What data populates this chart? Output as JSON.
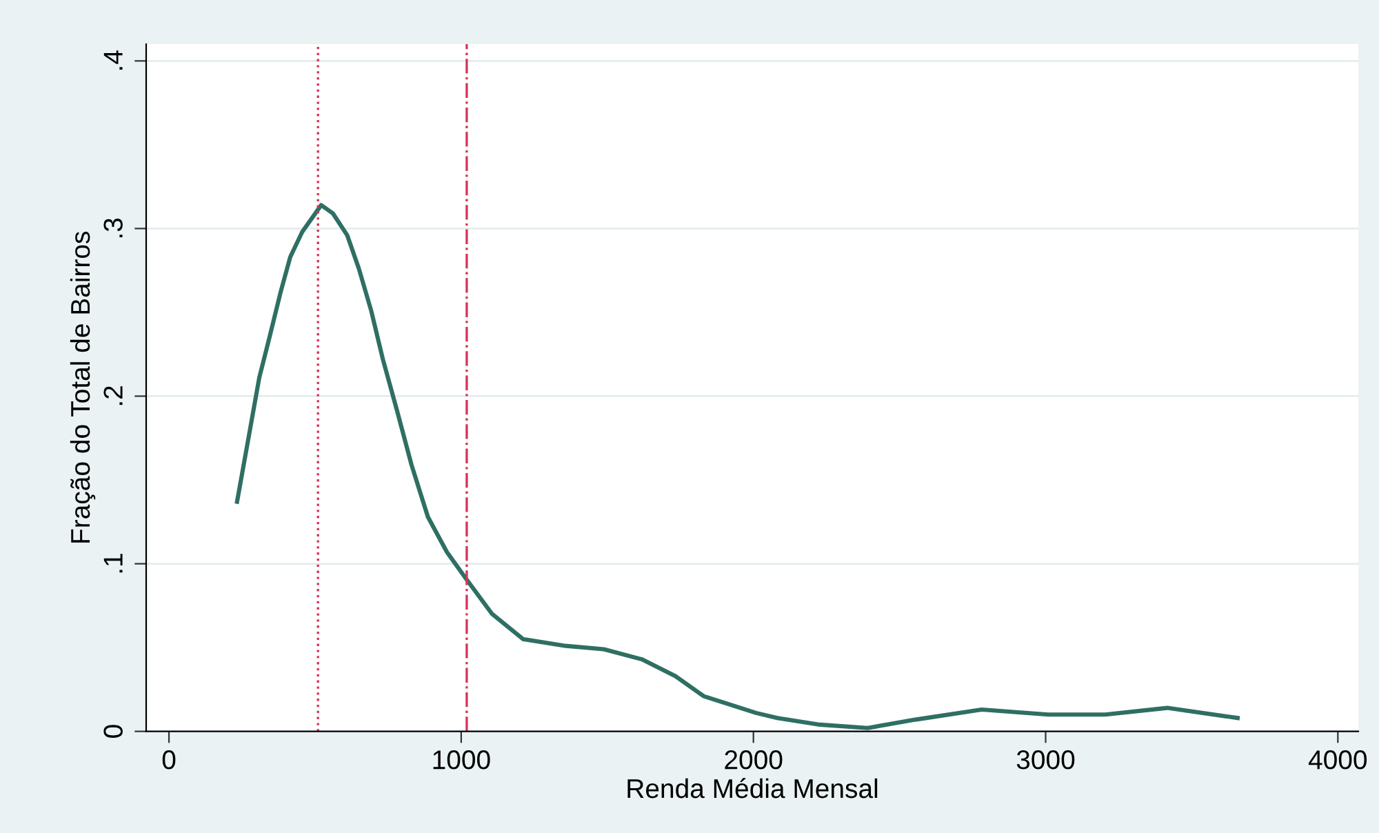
{
  "chart_data": {
    "type": "line",
    "xlabel": "Renda Média Mensal",
    "ylabel": "Fração do Total de Bairros",
    "x": [
      233,
      268,
      309,
      341,
      382,
      415,
      456,
      521,
      561,
      610,
      650,
      692,
      732,
      781,
      830,
      886,
      951,
      1017,
      1106,
      1212,
      1358,
      1488,
      1618,
      1733,
      1830,
      2009,
      2082,
      2228,
      2391,
      2554,
      2781,
      3009,
      3204,
      3416,
      3657
    ],
    "series": [
      {
        "color": "#2f6f63",
        "values": [
          0.137,
          0.171,
          0.211,
          0.233,
          0.262,
          0.283,
          0.298,
          0.314,
          0.309,
          0.296,
          0.276,
          0.251,
          0.222,
          0.191,
          0.159,
          0.128,
          0.107,
          0.091,
          0.07,
          0.055,
          0.051,
          0.049,
          0.043,
          0.033,
          0.021,
          0.011,
          0.008,
          0.004,
          0.002,
          0.007,
          0.013,
          0.01,
          0.01,
          0.014,
          0.008
        ]
      }
    ],
    "xlim": [
      -78,
      4070
    ],
    "xticks": [
      0,
      1000,
      2000,
      3000,
      4000
    ],
    "ylim": [
      0,
      0.41
    ],
    "yticks": [
      {
        "value": 0,
        "label": "0"
      },
      {
        "value": 0.1,
        "label": ".1"
      },
      {
        "value": 0.2,
        "label": ".2"
      },
      {
        "value": 0.3,
        "label": ".3"
      },
      {
        "value": 0.4,
        "label": ".4"
      }
    ],
    "grid": "y",
    "marker": "none",
    "line_style": "solid",
    "legend": false,
    "ref_lines": [
      {
        "axis": "x",
        "value": 510,
        "color": "#d6335a",
        "line_style": "dotted"
      },
      {
        "axis": "x",
        "value": 1019,
        "color": "#d6335a",
        "line_style": "dashdot"
      }
    ]
  }
}
